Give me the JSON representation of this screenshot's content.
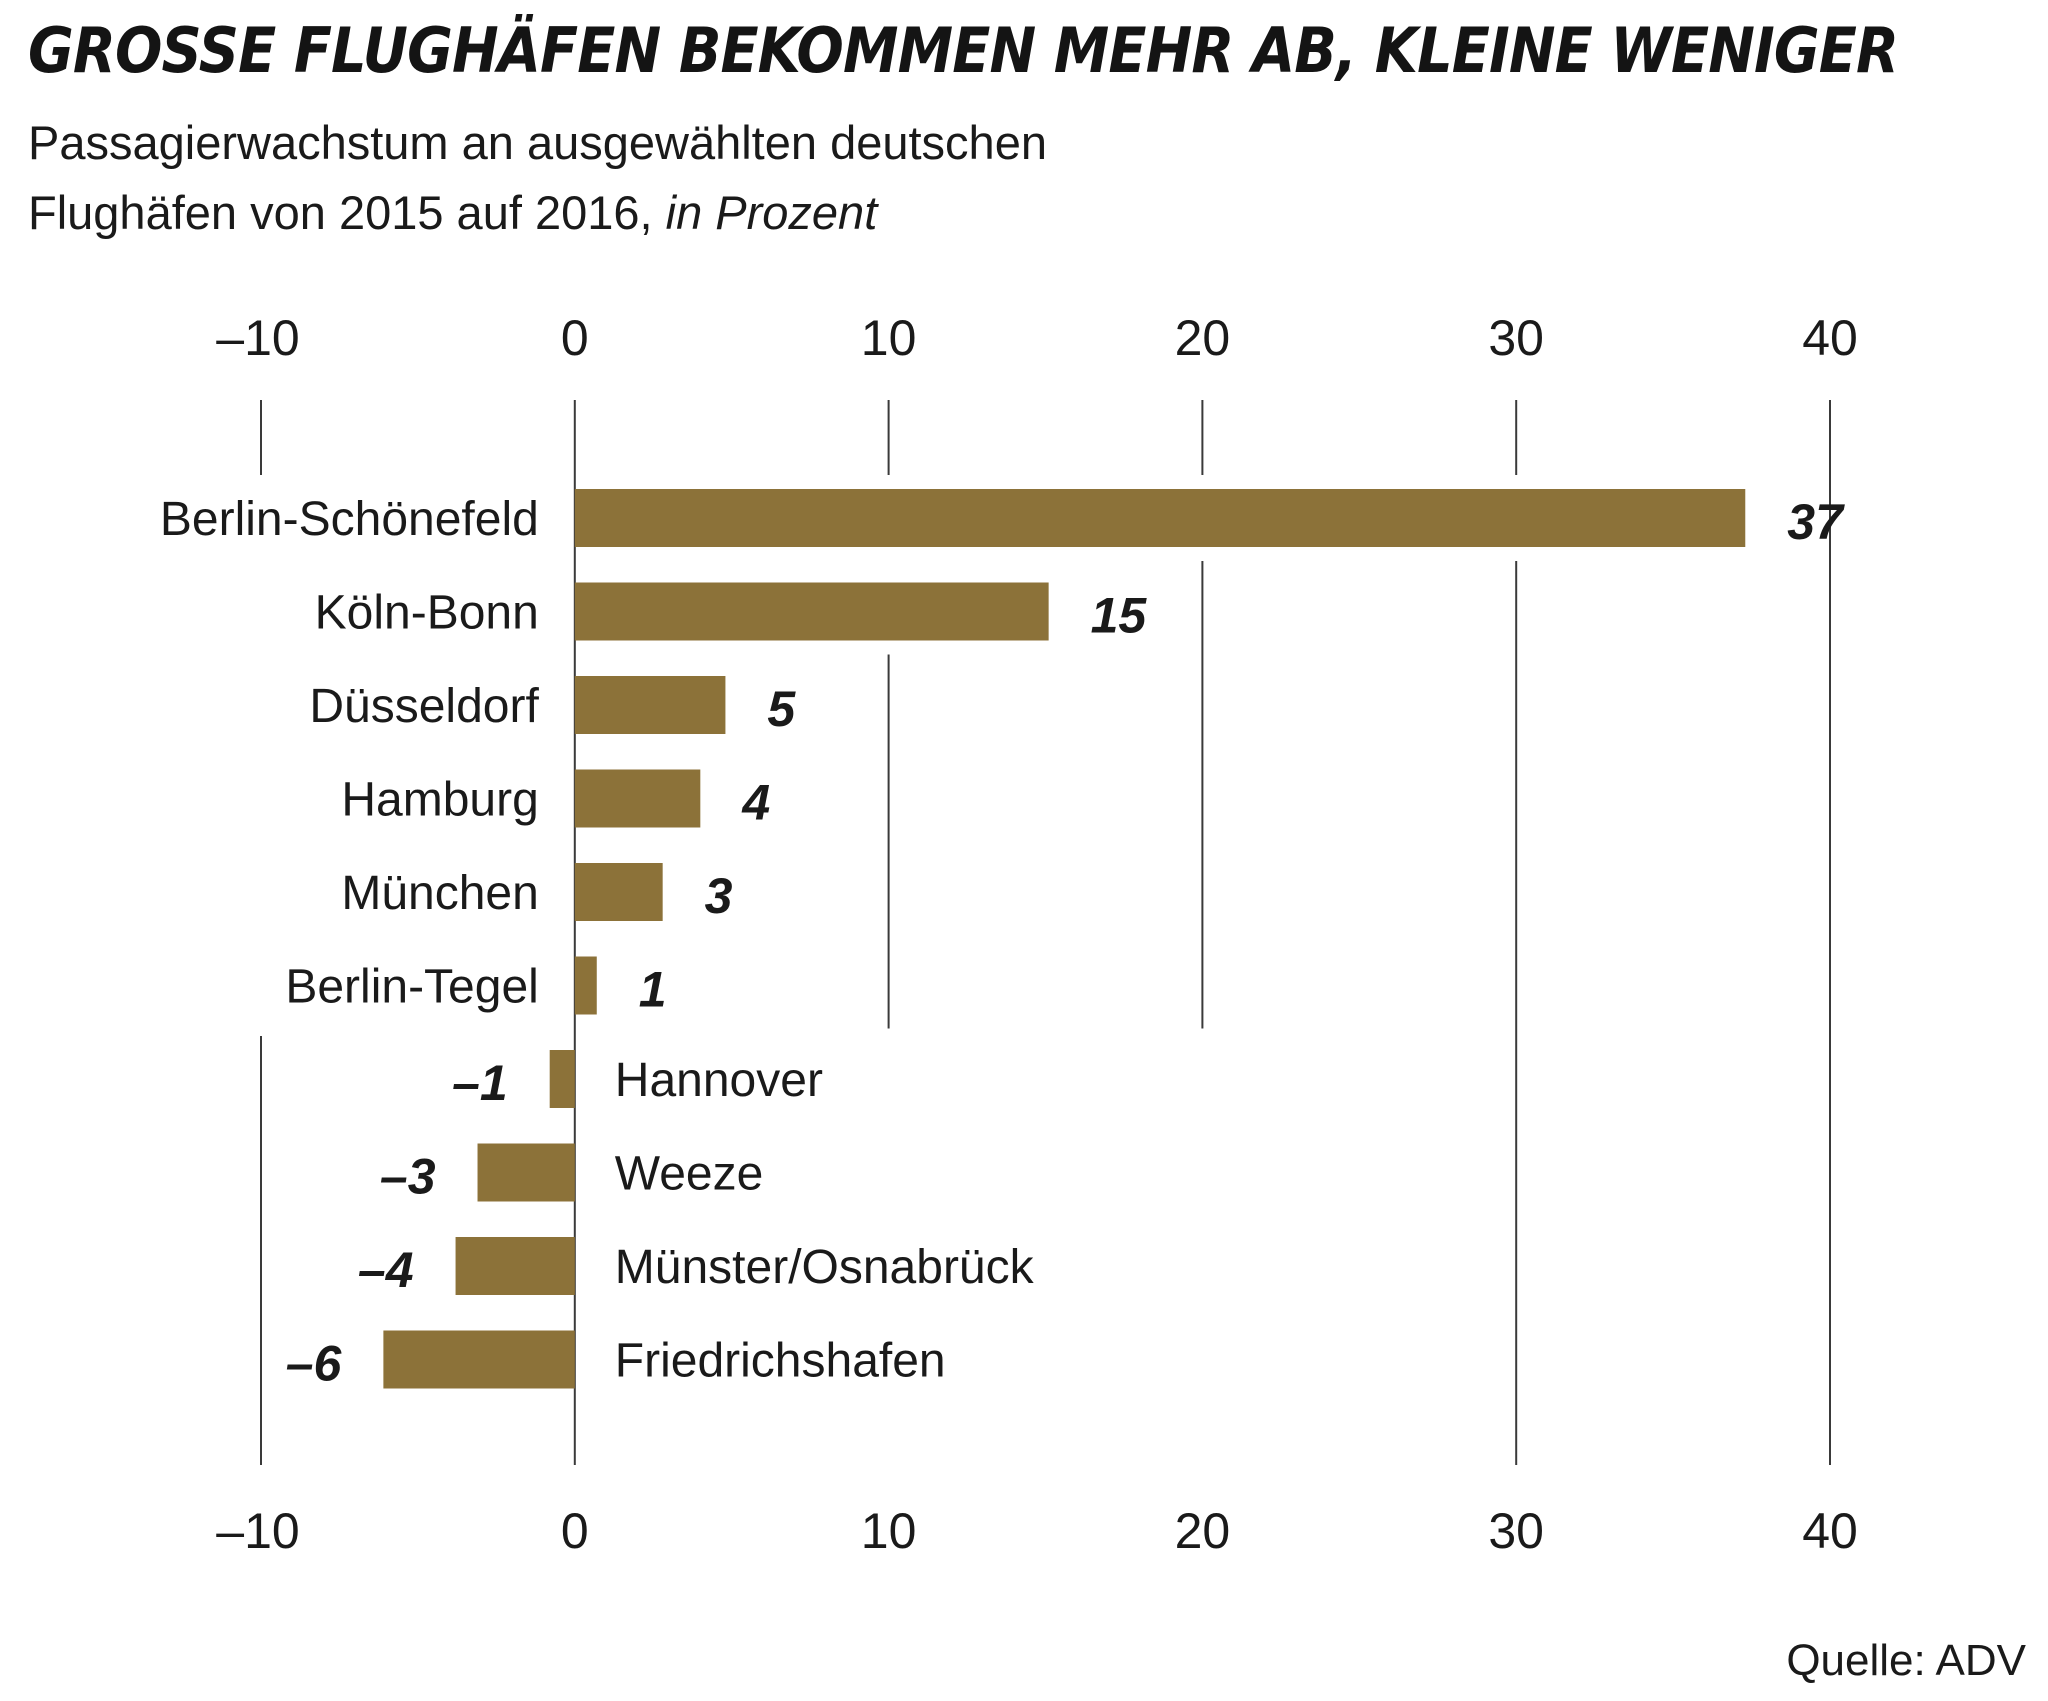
{
  "header": {
    "title": "GROSSE FLUGHÄFEN BEKOMMEN MEHR AB, KLEINE WENIGER",
    "subtitle_line1": "Passagierwachstum an ausgewählten deutschen",
    "subtitle_line2": "Flughäfen von 2015 auf 2016,",
    "subtitle_unit": "in Prozent"
  },
  "footer": {
    "source": "Quelle: ADV"
  },
  "chart_data": {
    "type": "bar",
    "orientation": "horizontal",
    "title": "GROSSE FLUGHÄFEN BEKOMMEN MEHR AB, KLEINE WENIGER",
    "subtitle": "Passagierwachstum an ausgewählten deutschen Flughäfen von 2015 auf 2016, in Prozent",
    "categories": [
      "Berlin-Schönefeld",
      "Köln-Bonn",
      "Düsseldorf",
      "Hamburg",
      "München",
      "Berlin-Tegel",
      "Hannover",
      "Weeze",
      "Münster/Osnabrück",
      "Friedrichshafen"
    ],
    "values": [
      37.3,
      15.1,
      4.8,
      4,
      2.8,
      0.7,
      -0.8,
      -3.1,
      -3.8,
      -6.1
    ],
    "value_labels": [
      "37",
      "15",
      "5",
      "4",
      "3",
      "1",
      "–1",
      "–3",
      "–4",
      "–6"
    ],
    "xlim": [
      -10,
      40
    ],
    "xticks": [
      -10,
      0,
      10,
      20,
      30,
      40
    ],
    "xtick_labels": [
      "–10",
      "0",
      "10",
      "20",
      "30",
      "40"
    ],
    "axis_position": "top and bottom",
    "grid": true,
    "legend": "none",
    "bar_color": "#8c7239",
    "grid_color": "#3a3a3a"
  }
}
